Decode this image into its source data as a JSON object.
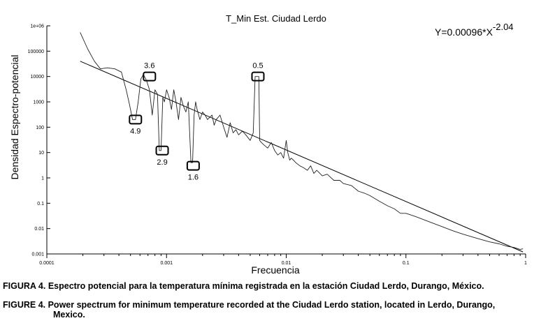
{
  "chart_data": {
    "type": "line",
    "title": "T_Min Est. Ciudad Lerdo",
    "xlabel": "Frecuencia",
    "ylabel": "Densidad Espectro-potencial",
    "xscale": "log",
    "yscale": "log",
    "xlim": [
      0.0001,
      1
    ],
    "ylim": [
      0.001,
      1000000
    ],
    "x_ticks": [
      {
        "v": 0.0001,
        "label": "0.0001"
      },
      {
        "v": 0.001,
        "label": "0.001"
      },
      {
        "v": 0.01,
        "label": "0.01"
      },
      {
        "v": 0.1,
        "label": "0.1"
      },
      {
        "v": 1,
        "label": "1"
      }
    ],
    "y_ticks": [
      {
        "v": 1000000,
        "label": "1e+06"
      },
      {
        "v": 100000,
        "label": "100000"
      },
      {
        "v": 10000,
        "label": "10000"
      },
      {
        "v": 1000,
        "label": "1000"
      },
      {
        "v": 100,
        "label": "100"
      },
      {
        "v": 10,
        "label": "10"
      },
      {
        "v": 1,
        "label": "1"
      },
      {
        "v": 0.1,
        "label": "0.1"
      },
      {
        "v": 0.01,
        "label": "0.01"
      },
      {
        "v": 0.001,
        "label": "0.001"
      }
    ],
    "equation": {
      "base": "Y=0.00096*X",
      "exponent": "-2.04"
    },
    "fit_line": {
      "x": [
        0.00019,
        0.95
      ],
      "y": [
        40000,
        0.0012
      ]
    },
    "series": [
      {
        "x": [
          0.00019,
          0.00022,
          0.00025,
          0.00028,
          0.00032,
          0.00037,
          0.00042,
          0.00046,
          0.00049,
          0.00052,
          0.00055,
          0.00058,
          0.00061,
          0.00064,
          0.00068,
          0.00072,
          0.00076,
          0.0008,
          0.00084,
          0.00087,
          0.0009,
          0.00093,
          0.00096,
          0.001,
          0.00105,
          0.0011,
          0.00115,
          0.0012,
          0.00126,
          0.00132,
          0.00138,
          0.00145,
          0.00152,
          0.0016,
          0.00165,
          0.0017,
          0.00175,
          0.0018,
          0.0019,
          0.002,
          0.0021,
          0.0022,
          0.0023,
          0.0024,
          0.0025,
          0.0026,
          0.0028,
          0.003,
          0.0032,
          0.0034,
          0.0036,
          0.0038,
          0.004,
          0.0043,
          0.0046,
          0.005,
          0.0053,
          0.0055,
          0.0057,
          0.0059,
          0.006,
          0.0062,
          0.0065,
          0.007,
          0.0075,
          0.008,
          0.0085,
          0.009,
          0.0095,
          0.01,
          0.0103,
          0.0107,
          0.011,
          0.0115,
          0.012,
          0.013,
          0.014,
          0.015,
          0.016,
          0.017,
          0.018,
          0.02,
          0.022,
          0.025,
          0.028,
          0.03,
          0.035,
          0.04,
          0.045,
          0.05,
          0.06,
          0.07,
          0.08,
          0.09,
          0.1,
          0.12,
          0.15,
          0.2,
          0.25,
          0.3,
          0.4,
          0.5,
          0.6,
          0.7,
          0.8,
          0.9,
          0.95
        ],
        "y": [
          550000,
          120000,
          40000,
          20000,
          22000,
          20000,
          15000,
          3000,
          800,
          200,
          200,
          1000,
          8000,
          12000,
          7000,
          3000,
          300,
          3000,
          2000,
          12,
          12,
          1500,
          1000,
          3000,
          1500,
          500,
          3000,
          1000,
          200,
          1500,
          700,
          400,
          1000,
          4,
          4,
          300,
          1000,
          500,
          200,
          400,
          300,
          200,
          250,
          300,
          120,
          200,
          300,
          100,
          40,
          150,
          60,
          80,
          50,
          70,
          50,
          30,
          60,
          10000,
          10000,
          10000,
          30,
          25,
          20,
          15,
          25,
          12,
          8,
          10,
          6,
          30,
          10,
          5,
          6,
          5,
          4,
          3,
          2.5,
          2,
          3,
          1.5,
          2,
          1.2,
          1.4,
          0.8,
          0.8,
          0.6,
          0.5,
          0.3,
          0.25,
          0.2,
          0.12,
          0.08,
          0.06,
          0.04,
          0.04,
          0.03,
          0.02,
          0.012,
          0.008,
          0.006,
          0.004,
          0.003,
          0.0025,
          0.002,
          0.0018,
          0.0015,
          0.0016
        ]
      }
    ],
    "annotations": [
      {
        "label": "3.6",
        "x": 0.00072,
        "y": 10000,
        "label_pos": "above"
      },
      {
        "label": "4.9",
        "x": 0.00055,
        "y": 200,
        "label_pos": "below"
      },
      {
        "label": "2.9",
        "x": 0.00092,
        "y": 12,
        "label_pos": "below"
      },
      {
        "label": "1.6",
        "x": 0.00167,
        "y": 3,
        "label_pos": "below"
      },
      {
        "label": "0.5",
        "x": 0.0058,
        "y": 10000,
        "label_pos": "above"
      }
    ]
  },
  "captions": {
    "es": "FIGURA 4. Espectro potencial para la temperatura mínima registrada en la estación Ciudad Lerdo, Durango, México.",
    "en_line1": "FIGURE 4. Power spectrum for minimum temperature recorded at the Ciudad Lerdo station, located in Lerdo, Durango,",
    "en_line2": "Mexico."
  }
}
